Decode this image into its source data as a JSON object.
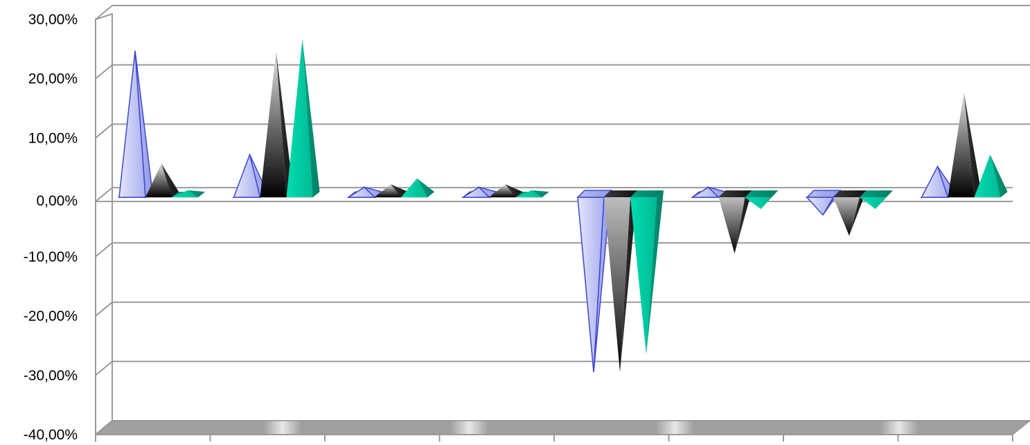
{
  "chart_data": {
    "type": "bar",
    "style": "3d-pyramid",
    "categories": [
      "",
      "",
      "",
      "",
      "",
      "",
      "",
      ""
    ],
    "series": [
      {
        "color": "#c8ccf4",
        "values": [
          24.0,
          6.5,
          1.0,
          1.0,
          -29.0,
          1.0,
          -2.5,
          4.5
        ]
      },
      {
        "color": "#404040",
        "values": [
          5.0,
          24.0,
          1.5,
          1.5,
          -29.0,
          -9.0,
          -6.0,
          17.0
        ]
      },
      {
        "color": "#00c8a0",
        "values": [
          0.5,
          26.0,
          2.5,
          0.5,
          -26.0,
          -1.5,
          -1.5,
          6.5
        ]
      }
    ],
    "title": "",
    "xlabel": "",
    "ylabel": "",
    "ylim": [
      -40,
      30
    ],
    "yticks": [
      30,
      20,
      10,
      0,
      -10,
      -20,
      -30,
      -40
    ],
    "ytick_labels": [
      "30,00%",
      "20,00%",
      "10,00%",
      "0,00%",
      "-10,00%",
      "-20,00%",
      "-30,00%",
      "-40,00%"
    ],
    "grid": true,
    "legend": "none"
  }
}
